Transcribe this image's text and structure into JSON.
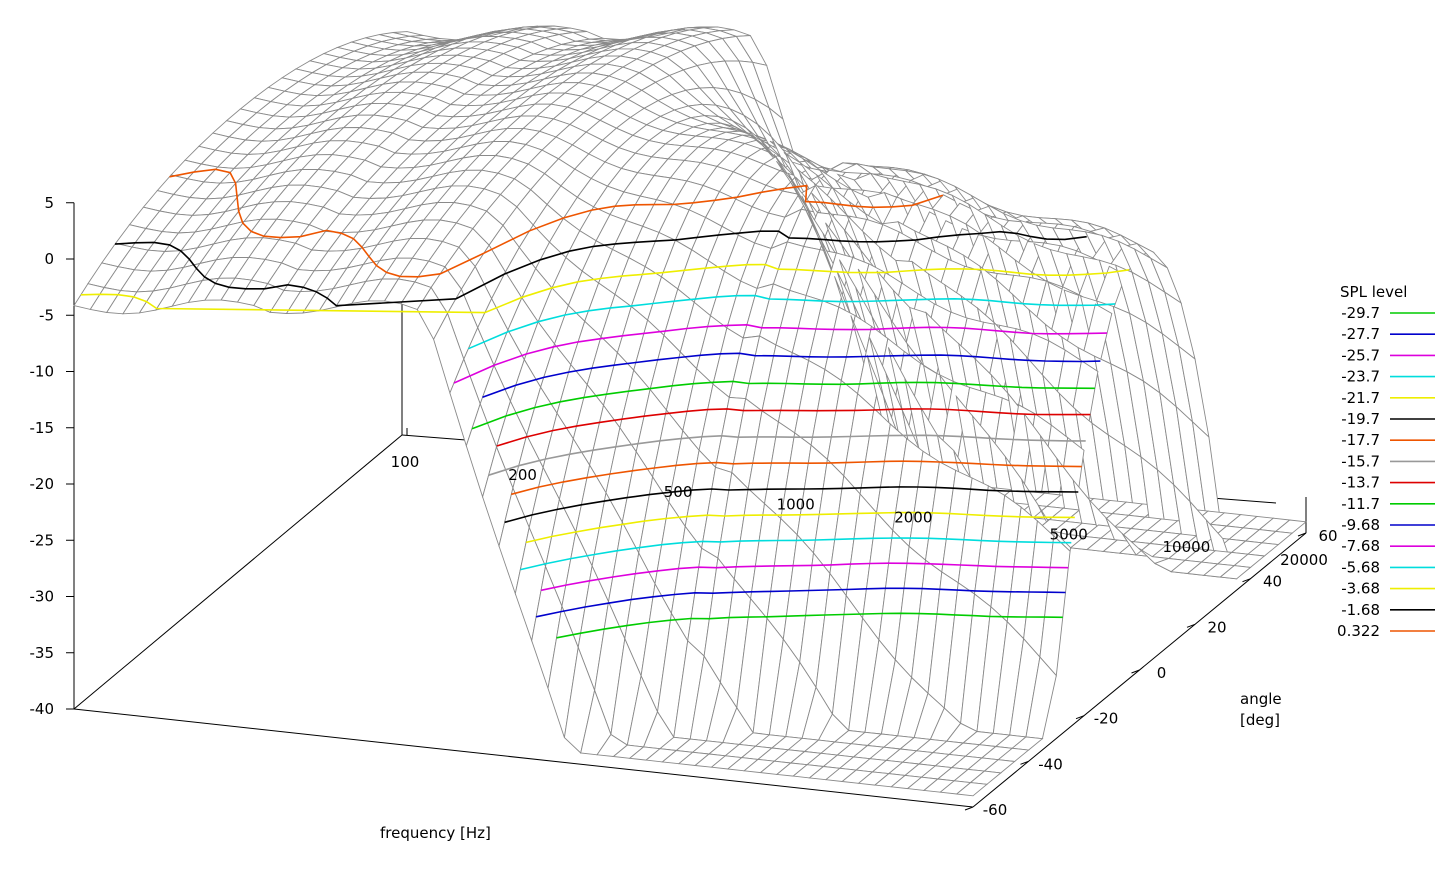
{
  "chart_data": {
    "type": "surface",
    "xlabel": "frequency  [Hz]",
    "ylabel": "angle\n[deg]",
    "x_ticks": [
      100,
      200,
      500,
      1000,
      2000,
      5000,
      10000,
      20000
    ],
    "x_scale": "log",
    "xlim": [
      100,
      20000
    ],
    "y_ticks": [
      -60,
      -40,
      -20,
      0,
      20,
      40,
      60
    ],
    "ylim": [
      -60,
      60
    ],
    "z_ticks": [
      5,
      0,
      -5,
      -10,
      -15,
      -20,
      -25,
      -30,
      -35,
      -40
    ],
    "zlim": [
      -40,
      5
    ],
    "legend": {
      "title": "SPL level",
      "placement": "right",
      "entries": [
        {
          "label": "-29.7",
          "color": "#00cc00"
        },
        {
          "label": "-27.7",
          "color": "#0000cc"
        },
        {
          "label": "-25.7",
          "color": "#dd00dd"
        },
        {
          "label": "-23.7",
          "color": "#00dddd"
        },
        {
          "label": "-21.7",
          "color": "#eeee00"
        },
        {
          "label": "-19.7",
          "color": "#000000"
        },
        {
          "label": "-17.7",
          "color": "#ee5500"
        },
        {
          "label": "-15.7",
          "color": "#999999"
        },
        {
          "label": "-13.7",
          "color": "#dd0000"
        },
        {
          "label": "-11.7",
          "color": "#00cc00"
        },
        {
          "label": "-9.68",
          "color": "#0000cc"
        },
        {
          "label": "-7.68",
          "color": "#dd00dd"
        },
        {
          "label": "-5.68",
          "color": "#00dddd"
        },
        {
          "label": "-3.68",
          "color": "#eeee00"
        },
        {
          "label": "-1.68",
          "color": "#000000"
        },
        {
          "label": "0.322",
          "color": "#ee5500"
        }
      ]
    }
  }
}
